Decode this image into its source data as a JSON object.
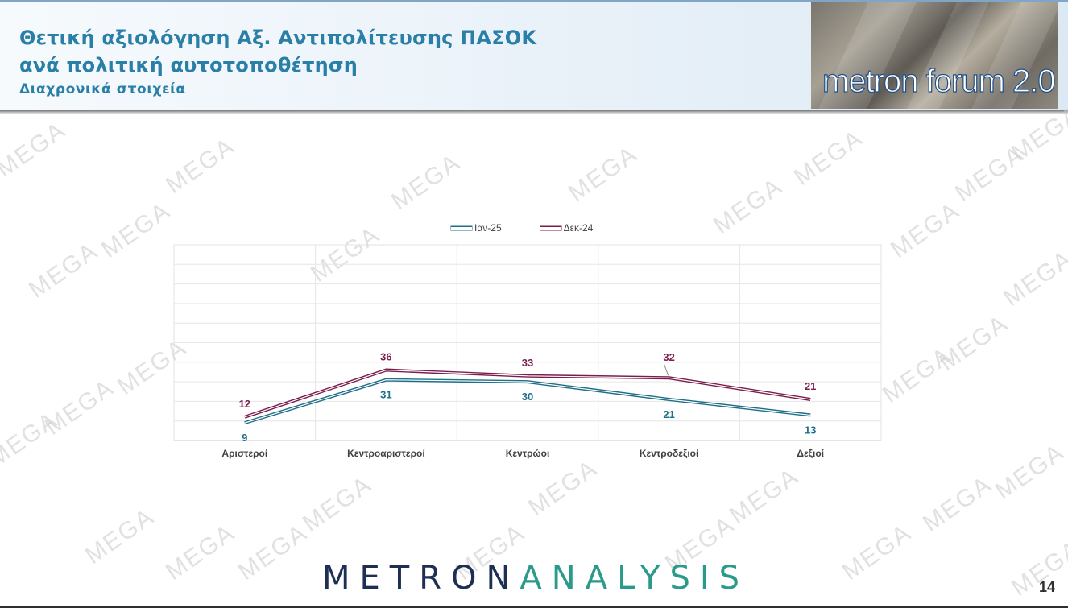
{
  "header": {
    "title_line1": "Θετική αξιολόγηση Αξ. Αντιπολίτευσης ΠΑΣΟΚ",
    "title_line2": "ανά πολιτική αυτοτοποθέτηση",
    "subtitle": "Διαχρονικά στοιχεία",
    "logo_text": "metron forum 2.0"
  },
  "watermark_text": "MEGA",
  "chart_data": {
    "type": "line",
    "categories": [
      "Αριστεροί",
      "Κεντροαριστεροί",
      "Κεντρώοι",
      "Κεντροδεξιοί",
      "Δεξιοί"
    ],
    "series": [
      {
        "name": "Ιαν-25",
        "values": [
          9,
          31,
          30,
          21,
          13
        ],
        "color": "#1f6f88"
      },
      {
        "name": "Δεκ-24",
        "values": [
          12,
          36,
          33,
          32,
          21
        ],
        "color": "#7a1d4e"
      }
    ],
    "ylim": [
      0,
      100
    ],
    "grid": true,
    "legend_position": "top-center"
  },
  "footer": {
    "brand_part1": "METRON",
    "brand_part2": "ANALYSIS",
    "brand_color1": "#1e2f54",
    "brand_color2": "#2a9a8a",
    "page_number": "14"
  }
}
